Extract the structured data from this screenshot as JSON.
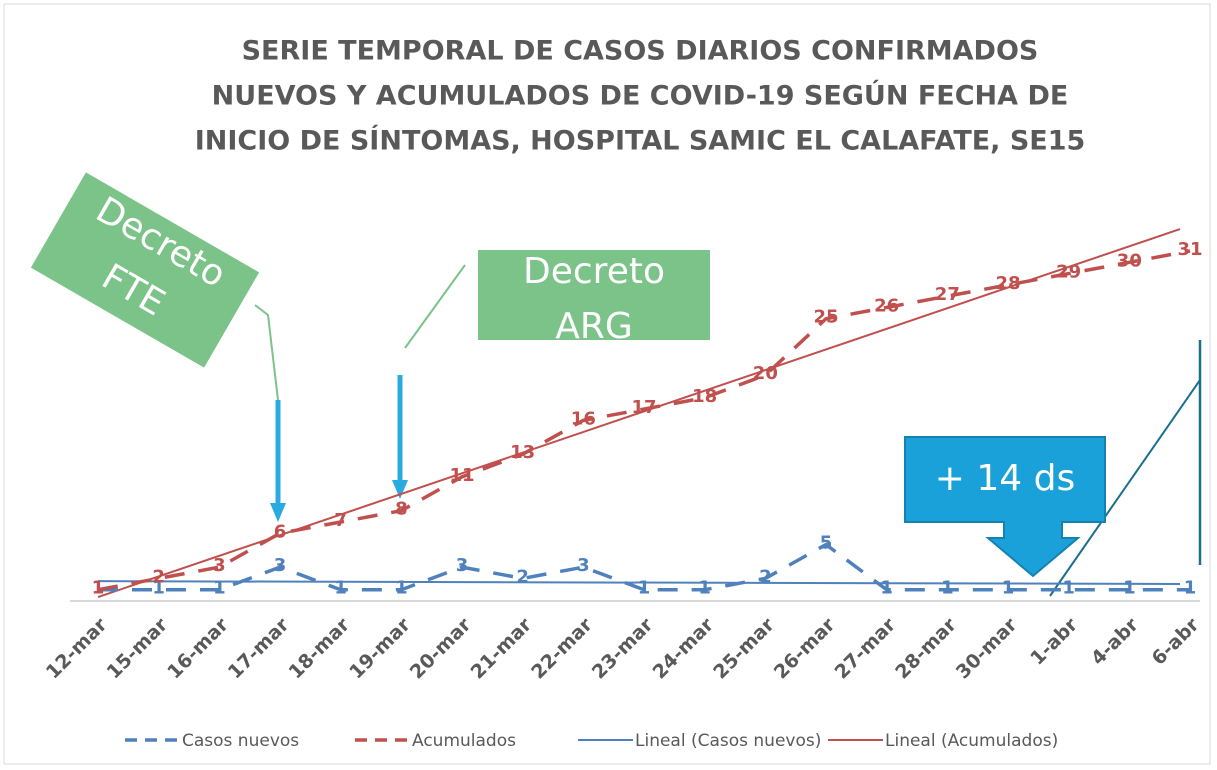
{
  "chart_data": {
    "type": "line",
    "title": [
      "SERIE TEMPORAL DE CASOS DIARIOS CONFIRMADOS",
      "NUEVOS Y ACUMULADOS DE COVID-19 SEGÚN FECHA DE",
      "INICIO DE SÍNTOMAS, HOSPITAL SAMIC EL CALAFATE, SE15"
    ],
    "categories": [
      "12-mar",
      "15-mar",
      "16-mar",
      "17-mar",
      "18-mar",
      "19-mar",
      "20-mar",
      "21-mar",
      "22-mar",
      "23-mar",
      "24-mar",
      "25-mar",
      "26-mar",
      "27-mar",
      "28-mar",
      "30-mar",
      "1-abr",
      "4-abr",
      "6-abr"
    ],
    "series": [
      {
        "name": "Casos nuevos",
        "color": "#4f81bd",
        "values": [
          1,
          1,
          1,
          3,
          1,
          1,
          3,
          2,
          3,
          1,
          1,
          2,
          5,
          1,
          1,
          1,
          1,
          1,
          1
        ],
        "trendline": {
          "name": "Lineal (Casos nuevos)",
          "color": "#4f81bd"
        }
      },
      {
        "name": "Acumulados",
        "color": "#c0504d",
        "values": [
          1,
          2,
          3,
          6,
          7,
          8,
          11,
          13,
          16,
          17,
          18,
          20,
          25,
          26,
          27,
          28,
          29,
          30,
          31
        ],
        "trendline": {
          "name": "Lineal (Acumulados)",
          "color": "#c0504d"
        }
      }
    ],
    "annotations": [
      {
        "text": [
          "Decreto",
          "FTE"
        ]
      },
      {
        "text": [
          "Decreto",
          "ARG"
        ]
      },
      {
        "text": [
          "+ 14 ds"
        ]
      }
    ]
  }
}
